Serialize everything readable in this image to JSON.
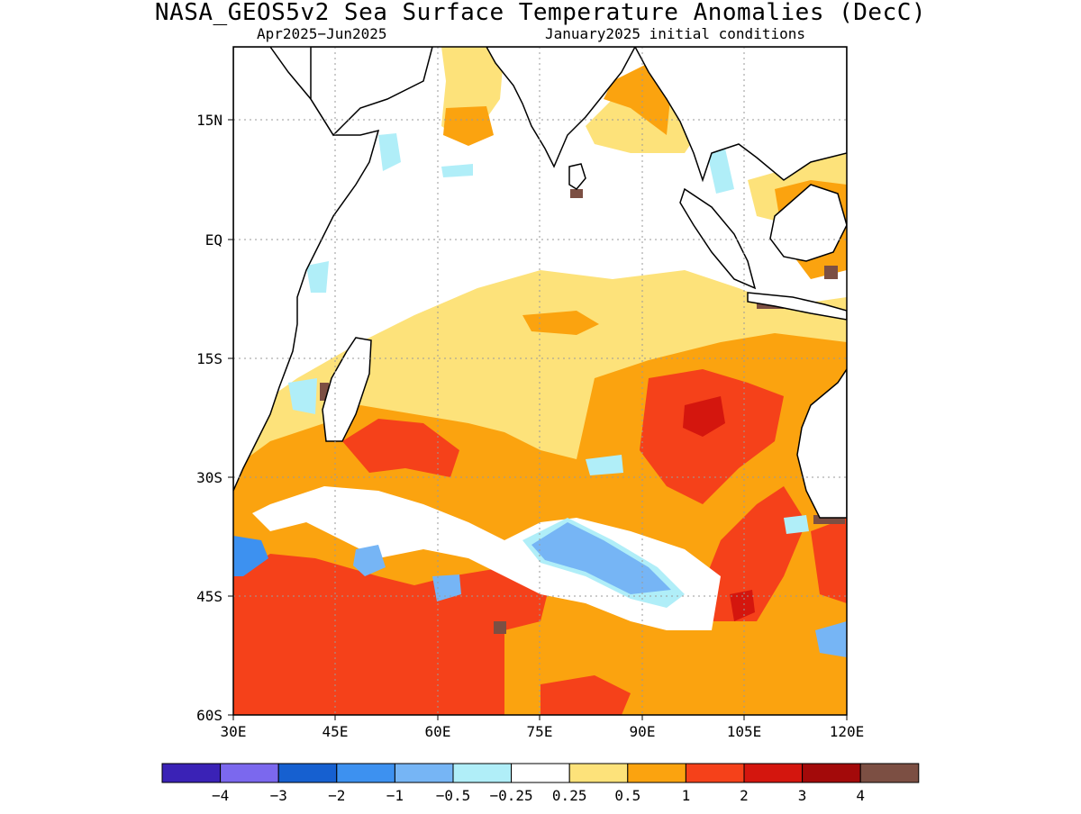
{
  "title": "NASA_GEOS5v2 Sea Surface Temperature Anomalies (DecC)",
  "subtitle_left": "Apr2025−Jun2025",
  "subtitle_right": "January2025 initial conditions",
  "lat_labels": [
    "15N",
    "EQ",
    "15S",
    "30S",
    "45S",
    "60S"
  ],
  "lon_labels": [
    "30E",
    "45E",
    "60E",
    "75E",
    "90E",
    "105E",
    "120E"
  ],
  "colorbar": {
    "colors": [
      "#3a22b6",
      "#7b68ee",
      "#1660d0",
      "#3d91f0",
      "#76b5f5",
      "#b0eef8",
      "#ffffff",
      "#fde27a",
      "#fba30f",
      "#f5411a",
      "#d4160e",
      "#a30a0a",
      "#7c4f43"
    ],
    "labels": [
      "−4",
      "−3",
      "−2",
      "−1",
      "−0.5",
      "−0.25",
      "0.25",
      "0.5",
      "1",
      "2",
      "3",
      "4"
    ]
  }
}
